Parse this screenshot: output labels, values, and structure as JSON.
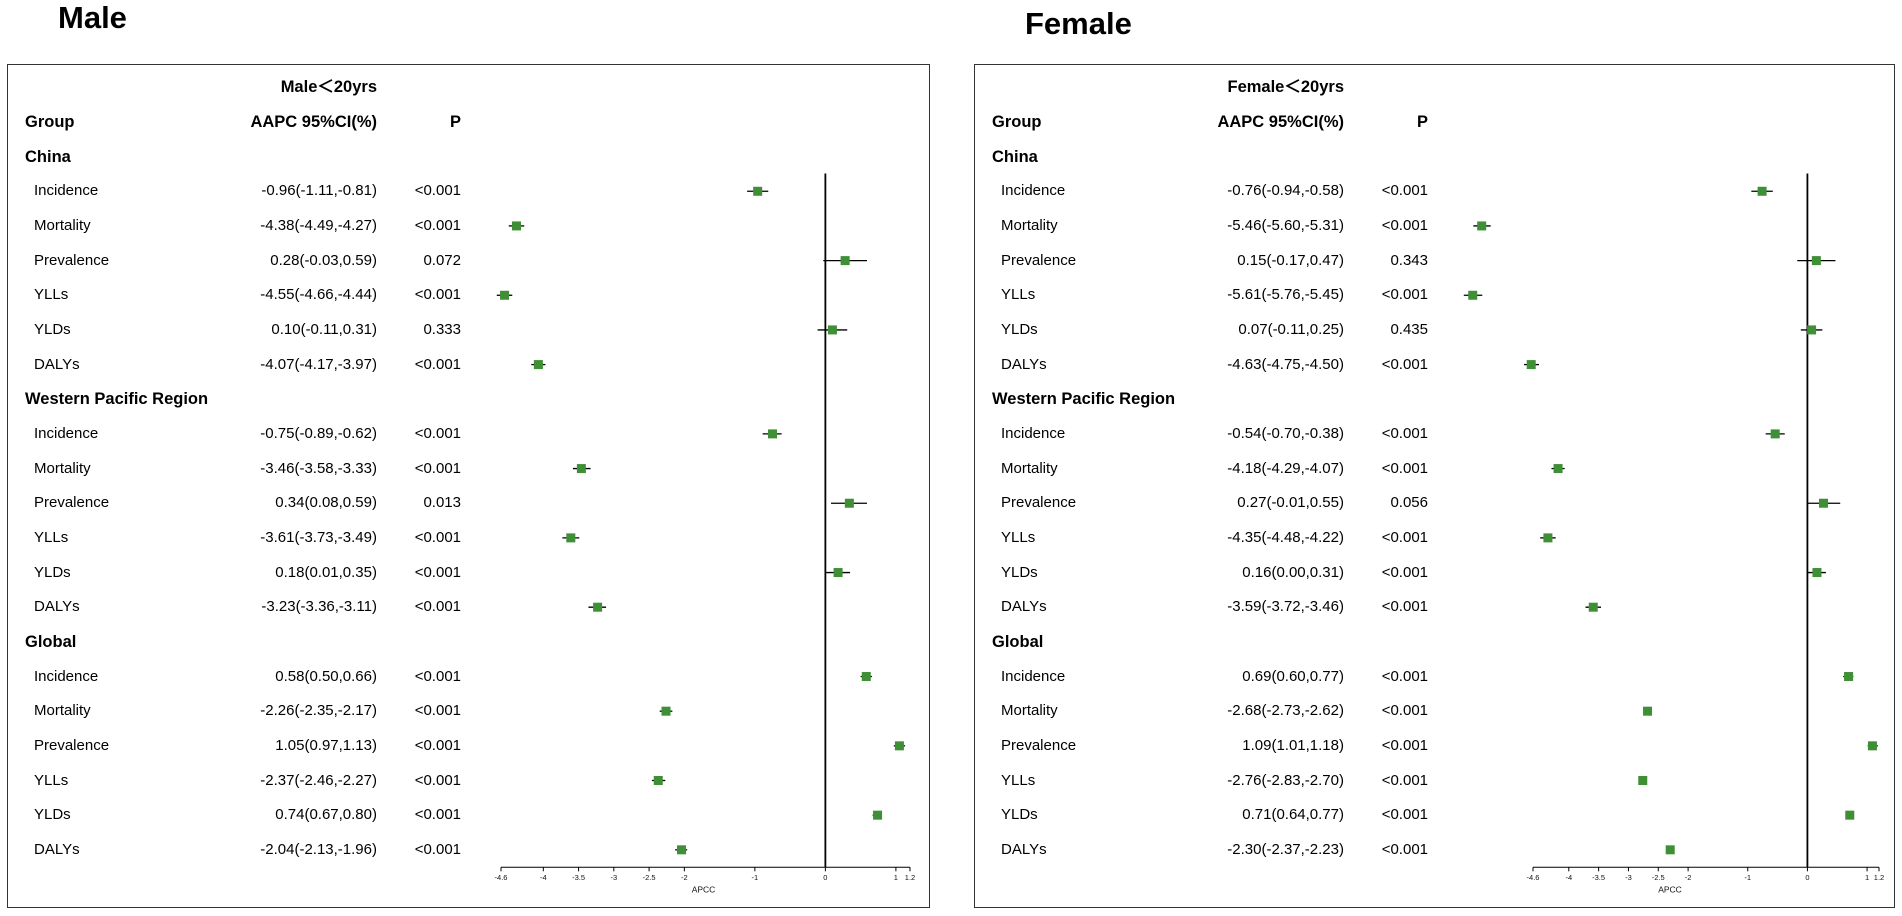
{
  "colors": {
    "marker": "#3f8f36",
    "ci_line": "#000000",
    "axis": "#000000",
    "panel_border": "#333333"
  },
  "chart_data": [
    {
      "type": "scatter",
      "title": "Male",
      "subtitle": "Male＜20yrs",
      "columns": {
        "group": "Group",
        "estimate": "AAPC 95%CI(%)",
        "p": "P"
      },
      "xlabel": "APCC",
      "xlim": [
        -4.6,
        1.2
      ],
      "xticks": [
        -4.6,
        -4,
        -3.5,
        -3,
        -2.5,
        -2,
        -1,
        0,
        1,
        1.2
      ],
      "reference_line": 0,
      "groups": [
        {
          "name": "China",
          "rows": [
            {
              "label": "Incidence",
              "aapc_ci": "-0.96(-1.11,-0.81)",
              "est": -0.96,
              "lo": -1.11,
              "hi": -0.81,
              "p": "<0.001"
            },
            {
              "label": "Mortality",
              "aapc_ci": "-4.38(-4.49,-4.27)",
              "est": -4.38,
              "lo": -4.49,
              "hi": -4.27,
              "p": "<0.001"
            },
            {
              "label": "Prevalence",
              "aapc_ci": "0.28(-0.03,0.59)",
              "est": 0.28,
              "lo": -0.03,
              "hi": 0.59,
              "p": "0.072"
            },
            {
              "label": "YLLs",
              "aapc_ci": "-4.55(-4.66,-4.44)",
              "est": -4.55,
              "lo": -4.66,
              "hi": -4.44,
              "p": "<0.001"
            },
            {
              "label": "YLDs",
              "aapc_ci": "0.10(-0.11,0.31)",
              "est": 0.1,
              "lo": -0.11,
              "hi": 0.31,
              "p": "0.333"
            },
            {
              "label": "DALYs",
              "aapc_ci": "-4.07(-4.17,-3.97)",
              "est": -4.07,
              "lo": -4.17,
              "hi": -3.97,
              "p": "<0.001"
            }
          ]
        },
        {
          "name": "Western Pacific Region",
          "rows": [
            {
              "label": "Incidence",
              "aapc_ci": "-0.75(-0.89,-0.62)",
              "est": -0.75,
              "lo": -0.89,
              "hi": -0.62,
              "p": "<0.001"
            },
            {
              "label": "Mortality",
              "aapc_ci": "-3.46(-3.58,-3.33)",
              "est": -3.46,
              "lo": -3.58,
              "hi": -3.33,
              "p": "<0.001"
            },
            {
              "label": "Prevalence",
              "aapc_ci": "0.34(0.08,0.59)",
              "est": 0.34,
              "lo": 0.08,
              "hi": 0.59,
              "p": "0.013"
            },
            {
              "label": "YLLs",
              "aapc_ci": "-3.61(-3.73,-3.49)",
              "est": -3.61,
              "lo": -3.73,
              "hi": -3.49,
              "p": "<0.001"
            },
            {
              "label": "YLDs",
              "aapc_ci": "0.18(0.01,0.35)",
              "est": 0.18,
              "lo": 0.01,
              "hi": 0.35,
              "p": "<0.001"
            },
            {
              "label": "DALYs",
              "aapc_ci": "-3.23(-3.36,-3.11)",
              "est": -3.23,
              "lo": -3.36,
              "hi": -3.11,
              "p": "<0.001"
            }
          ]
        },
        {
          "name": "Global",
          "rows": [
            {
              "label": "Incidence",
              "aapc_ci": "0.58(0.50,0.66)",
              "est": 0.58,
              "lo": 0.5,
              "hi": 0.66,
              "p": "<0.001"
            },
            {
              "label": "Mortality",
              "aapc_ci": "-2.26(-2.35,-2.17)",
              "est": -2.26,
              "lo": -2.35,
              "hi": -2.17,
              "p": "<0.001"
            },
            {
              "label": "Prevalence",
              "aapc_ci": "1.05(0.97,1.13)",
              "est": 1.05,
              "lo": 0.97,
              "hi": 1.13,
              "p": "<0.001"
            },
            {
              "label": "YLLs",
              "aapc_ci": "-2.37(-2.46,-2.27)",
              "est": -2.37,
              "lo": -2.46,
              "hi": -2.27,
              "p": "<0.001"
            },
            {
              "label": "YLDs",
              "aapc_ci": "0.74(0.67,0.80)",
              "est": 0.74,
              "lo": 0.67,
              "hi": 0.8,
              "p": "<0.001"
            },
            {
              "label": "DALYs",
              "aapc_ci": "-2.04(-2.13,-1.96)",
              "est": -2.04,
              "lo": -2.13,
              "hi": -1.96,
              "p": "<0.001"
            }
          ]
        }
      ]
    },
    {
      "type": "scatter",
      "title": "Female",
      "subtitle": "Female＜20yrs",
      "columns": {
        "group": "Group",
        "estimate": "AAPC 95%CI(%)",
        "p": "P"
      },
      "xlabel": "APCC",
      "xlim": [
        -4.6,
        1.2
      ],
      "xticks": [
        -4.6,
        -4,
        -3.5,
        -3,
        -2.5,
        -2,
        -1,
        0,
        1,
        1.2
      ],
      "reference_line": 0,
      "groups": [
        {
          "name": "China",
          "rows": [
            {
              "label": "Incidence",
              "aapc_ci": "-0.76(-0.94,-0.58)",
              "est": -0.76,
              "lo": -0.94,
              "hi": -0.58,
              "p": "<0.001"
            },
            {
              "label": "Mortality",
              "aapc_ci": "-5.46(-5.60,-5.31)",
              "est": -5.46,
              "lo": -5.6,
              "hi": -5.31,
              "p": "<0.001"
            },
            {
              "label": "Prevalence",
              "aapc_ci": "0.15(-0.17,0.47)",
              "est": 0.15,
              "lo": -0.17,
              "hi": 0.47,
              "p": "0.343"
            },
            {
              "label": "YLLs",
              "aapc_ci": "-5.61(-5.76,-5.45)",
              "est": -5.61,
              "lo": -5.76,
              "hi": -5.45,
              "p": "<0.001"
            },
            {
              "label": "YLDs",
              "aapc_ci": "0.07(-0.11,0.25)",
              "est": 0.07,
              "lo": -0.11,
              "hi": 0.25,
              "p": "0.435"
            },
            {
              "label": "DALYs",
              "aapc_ci": "-4.63(-4.75,-4.50)",
              "est": -4.63,
              "lo": -4.75,
              "hi": -4.5,
              "p": "<0.001"
            }
          ]
        },
        {
          "name": "Western Pacific Region",
          "rows": [
            {
              "label": "Incidence",
              "aapc_ci": "-0.54(-0.70,-0.38)",
              "est": -0.54,
              "lo": -0.7,
              "hi": -0.38,
              "p": "<0.001"
            },
            {
              "label": "Mortality",
              "aapc_ci": "-4.18(-4.29,-4.07)",
              "est": -4.18,
              "lo": -4.29,
              "hi": -4.07,
              "p": "<0.001"
            },
            {
              "label": "Prevalence",
              "aapc_ci": "0.27(-0.01,0.55)",
              "est": 0.27,
              "lo": -0.01,
              "hi": 0.55,
              "p": "0.056"
            },
            {
              "label": "YLLs",
              "aapc_ci": "-4.35(-4.48,-4.22)",
              "est": -4.35,
              "lo": -4.48,
              "hi": -4.22,
              "p": "<0.001"
            },
            {
              "label": "YLDs",
              "aapc_ci": "0.16(0.00,0.31)",
              "est": 0.16,
              "lo": 0.0,
              "hi": 0.31,
              "p": "<0.001"
            },
            {
              "label": "DALYs",
              "aapc_ci": "-3.59(-3.72,-3.46)",
              "est": -3.59,
              "lo": -3.72,
              "hi": -3.46,
              "p": "<0.001"
            }
          ]
        },
        {
          "name": "Global",
          "rows": [
            {
              "label": "Incidence",
              "aapc_ci": "0.69(0.60,0.77)",
              "est": 0.69,
              "lo": 0.6,
              "hi": 0.77,
              "p": "<0.001"
            },
            {
              "label": "Mortality",
              "aapc_ci": "-2.68(-2.73,-2.62)",
              "est": -2.68,
              "lo": -2.73,
              "hi": -2.62,
              "p": "<0.001"
            },
            {
              "label": "Prevalence",
              "aapc_ci": "1.09(1.01,1.18)",
              "est": 1.09,
              "lo": 1.01,
              "hi": 1.18,
              "p": "<0.001"
            },
            {
              "label": "YLLs",
              "aapc_ci": "-2.76(-2.83,-2.70)",
              "est": -2.76,
              "lo": -2.83,
              "hi": -2.7,
              "p": "<0.001"
            },
            {
              "label": "YLDs",
              "aapc_ci": "0.71(0.64,0.77)",
              "est": 0.71,
              "lo": 0.64,
              "hi": 0.77,
              "p": "<0.001"
            },
            {
              "label": "DALYs",
              "aapc_ci": "-2.30(-2.37,-2.23)",
              "est": -2.3,
              "lo": -2.37,
              "hi": -2.23,
              "p": "<0.001"
            }
          ]
        }
      ]
    }
  ]
}
